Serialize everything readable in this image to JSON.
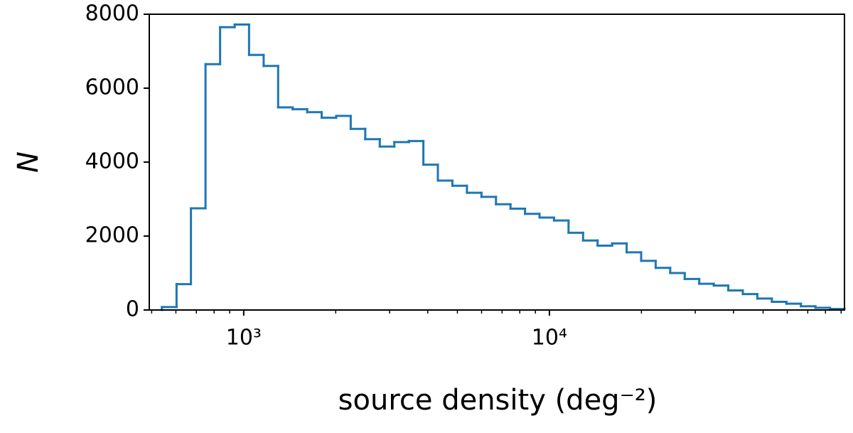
{
  "chart_data": {
    "type": "histogram",
    "xlabel": "source density (deg⁻²)",
    "ylabel": "N",
    "color": "#1f77b4",
    "xscale": "log",
    "bins": [
      540,
      603,
      672,
      750,
      837,
      934,
      1041,
      1162,
      1296,
      1446,
      1613,
      1799,
      2007,
      2239,
      2498,
      2787,
      3109,
      3469,
      3870,
      4317,
      4816,
      5373,
      5994,
      6687,
      7460,
      8322,
      9283,
      10354,
      11550,
      12887,
      14376,
      16038,
      17891,
      19958,
      22265,
      24840,
      27710,
      30910,
      34490,
      38470,
      42920,
      47880,
      53420,
      59590,
      66480,
      74160,
      82740,
      92300
    ],
    "values": [
      80,
      700,
      2750,
      6650,
      7650,
      7720,
      6900,
      6600,
      5480,
      5430,
      5350,
      5200,
      5250,
      4900,
      4620,
      4420,
      4540,
      4570,
      3930,
      3500,
      3360,
      3170,
      3060,
      2860,
      2740,
      2600,
      2500,
      2420,
      2090,
      1880,
      1740,
      1800,
      1560,
      1330,
      1140,
      1000,
      840,
      710,
      660,
      530,
      430,
      310,
      220,
      170,
      100,
      60,
      30
    ],
    "xlim": [
      491,
      92300
    ],
    "ylim": [
      0,
      8000
    ],
    "xticks": [
      {
        "value": 1000,
        "label": "10³"
      },
      {
        "value": 10000,
        "label": "10⁴"
      }
    ],
    "xminorticks": [
      500,
      600,
      700,
      800,
      900,
      2000,
      3000,
      4000,
      5000,
      6000,
      7000,
      8000,
      9000,
      20000,
      30000,
      40000,
      50000,
      60000,
      70000,
      80000,
      90000
    ],
    "yticks": [
      0,
      2000,
      4000,
      6000,
      8000
    ]
  }
}
